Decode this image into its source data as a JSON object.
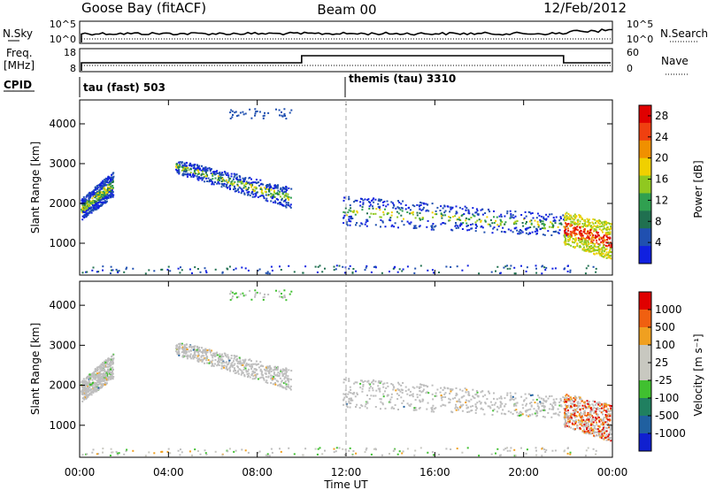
{
  "header": {
    "station": "Goose Bay (fitACF)",
    "beam": "Beam 00",
    "date": "12/Feb/2012"
  },
  "noise_panel": {
    "left_label": "N.Sky",
    "right_label": "N.Search",
    "left_ticks": [
      "10^5",
      "10^0"
    ],
    "right_ticks": [
      "10^5",
      "10^0"
    ]
  },
  "freq_panel": {
    "left_label": "Freq.",
    "left_unit": "[MHz]",
    "right_label": "Nave",
    "left_ticks": [
      "18",
      "8"
    ],
    "right_ticks": [
      "60",
      "0"
    ]
  },
  "cpid": {
    "label": "CPID",
    "segments": [
      {
        "name": "tau (fast) 503",
        "start": 0
      },
      {
        "name": "themis (tau) 3310",
        "start": 12
      }
    ]
  },
  "colors": {
    "power_scale": [
      "#1020e0",
      "#2050b0",
      "#207050",
      "#30a050",
      "#90c820",
      "#f0d000",
      "#f09000",
      "#f04010",
      "#e00000"
    ],
    "velocity_scale": [
      "#1020d0",
      "#2060a0",
      "#208060",
      "#40c030",
      "#c8c8c0",
      "#c8c8c0",
      "#f0a020",
      "#f06010",
      "#e00000"
    ],
    "groundscatter": "#bebebe"
  },
  "chart_data": [
    {
      "type": "heatmap",
      "panel": "power",
      "xlabel": "Time UT",
      "ylabel": "Slant Range [km]",
      "x_ticks": [
        "00:00",
        "04:00",
        "08:00",
        "12:00",
        "16:00",
        "20:00",
        "00:00"
      ],
      "xlim": [
        0,
        24
      ],
      "ylim": [
        200,
        4600
      ],
      "y_ticks": [
        1000,
        2000,
        3000,
        4000
      ],
      "colorbar_label": "Power [dB]",
      "colorbar_ticks": [
        4,
        8,
        12,
        16,
        20,
        24,
        28
      ],
      "colorbar_range": [
        0,
        30
      ],
      "bands": [
        {
          "t0": 0.0,
          "t1": 1.5,
          "r0": 1700,
          "r1": 2000,
          "r1b": 2700,
          "r0b": 2300
        },
        {
          "t0": 4.3,
          "t1": 9.5,
          "r0": 2900,
          "r1": 3000,
          "r1b": 2300,
          "r0b": 2000
        },
        {
          "t0": 11.8,
          "t1": 22.0,
          "r0": 1600,
          "r1": 2100,
          "r1b": 1600,
          "r0b": 1300
        },
        {
          "t0": 21.8,
          "t1": 24.0,
          "r0": 1100,
          "r1": 1700,
          "r1b": 1400,
          "r0b": 700
        }
      ]
    },
    {
      "type": "heatmap",
      "panel": "velocity",
      "xlabel": "Time UT",
      "ylabel": "Slant Range [km]",
      "x_ticks": [
        "00:00",
        "04:00",
        "08:00",
        "12:00",
        "16:00",
        "20:00",
        "00:00"
      ],
      "xlim": [
        0,
        24
      ],
      "ylim": [
        200,
        4600
      ],
      "y_ticks": [
        1000,
        2000,
        3000,
        4000
      ],
      "colorbar_label": "Velocity [m s⁻¹]",
      "colorbar_ticks": [
        "1000",
        "500",
        "100",
        "25",
        "-25",
        "-100",
        "-500",
        "-1000"
      ]
    }
  ]
}
